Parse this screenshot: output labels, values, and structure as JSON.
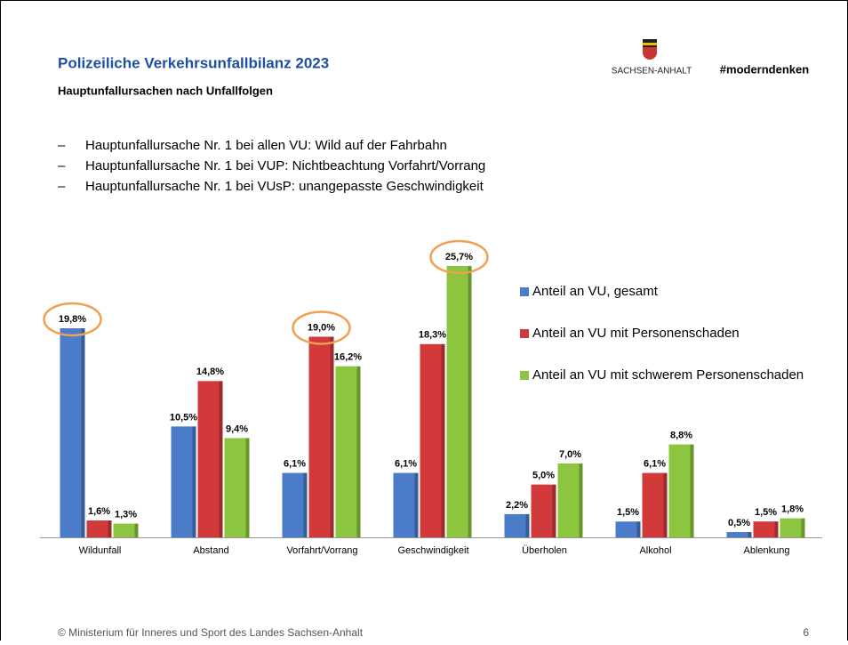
{
  "header": {
    "title": "Polizeiliche Verkehrsunfallbilanz 2023",
    "subtitle": "Hauptunfallursachen nach Unfallfolgen",
    "logo_text": "SACHSEN-ANHALT",
    "hashtag": "#moderndenken"
  },
  "bullets": [
    "Hauptunfallursache Nr. 1 bei allen VU: Wild auf der Fahrbahn",
    "Hauptunfallursache Nr. 1 bei VUP: Nichtbeachtung Vorfahrt/Vorrang",
    "Hauptunfallursache Nr. 1 bei VUsP: unangepasste Geschwindigkeit"
  ],
  "chart_data": {
    "type": "bar",
    "categories": [
      "Wildunfall",
      "Abstand",
      "Vorfahrt/Vorrang",
      "Geschwindigkeit",
      "Überholen",
      "Alkohol",
      "Ablenkung"
    ],
    "series": [
      {
        "name": "Anteil an VU, gesamt",
        "color": "#4a7cc9",
        "values": [
          19.8,
          10.5,
          6.1,
          6.1,
          2.2,
          1.5,
          0.5
        ],
        "value_labels": [
          "19,8%",
          "10,5%",
          "6,1%",
          "6,1%",
          "2,2%",
          "1,5%",
          "0,5%"
        ]
      },
      {
        "name": "Anteil an VU mit Personenschaden",
        "color": "#d2393b",
        "values": [
          1.6,
          14.8,
          19.0,
          18.3,
          5.0,
          6.1,
          1.5
        ],
        "value_labels": [
          "1,6%",
          "14,8%",
          "19,0%",
          "18,3%",
          "5,0%",
          "6,1%",
          "1,5%"
        ]
      },
      {
        "name": "Anteil an VU mit schwerem Personenschaden",
        "color": "#8cc63e",
        "values": [
          1.3,
          9.4,
          16.2,
          25.7,
          7.0,
          8.8,
          1.8
        ],
        "value_labels": [
          "1,3%",
          "9,4%",
          "16,2%",
          "25,7%",
          "7,0%",
          "8,8%",
          "1,8%"
        ]
      }
    ]
  },
  "footer": {
    "text": "© Ministerium für Inneres und Sport des Landes Sachsen-Anhalt",
    "page": "6"
  }
}
